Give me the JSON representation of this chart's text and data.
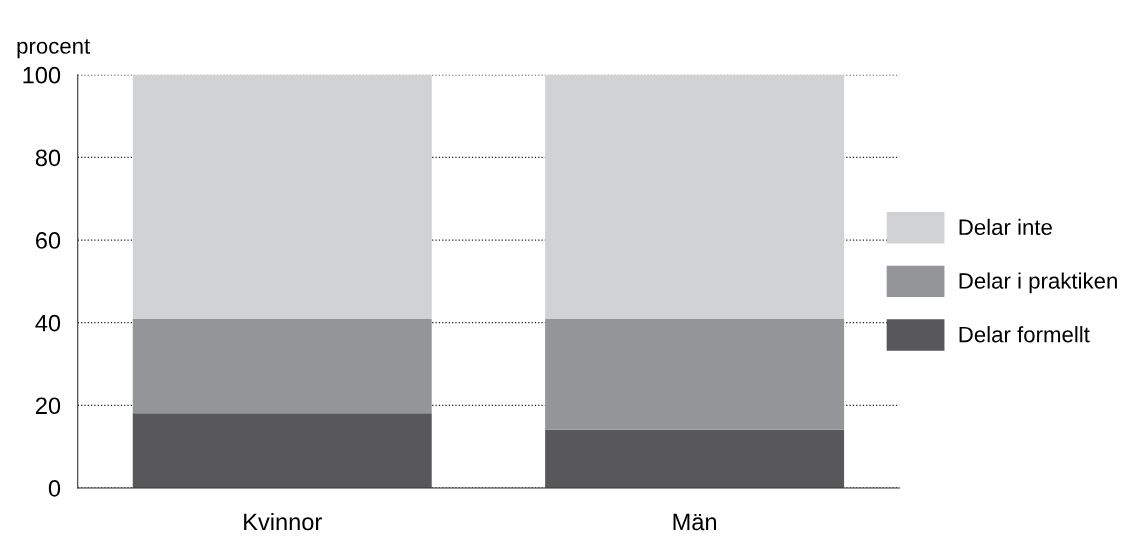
{
  "chart_data": {
    "type": "bar",
    "stacked": true,
    "ylabel": "procent",
    "categories": [
      "Kvinnor",
      "Män"
    ],
    "series": [
      {
        "name": "Delar formellt",
        "color": "#58585a",
        "values": [
          18.1,
          14.1
        ]
      },
      {
        "name": "Delar i praktiken",
        "color": "#949598",
        "values": [
          22.8,
          26.8
        ]
      },
      {
        "name": "Delar inte",
        "color": "#d1d2d4",
        "values": [
          59.1,
          59.1
        ]
      }
    ],
    "ylim": [
      0,
      100
    ],
    "yticks": [
      0,
      20,
      40,
      60,
      80,
      100
    ],
    "grid": "y",
    "line_style": "dotted",
    "legend": "right"
  }
}
